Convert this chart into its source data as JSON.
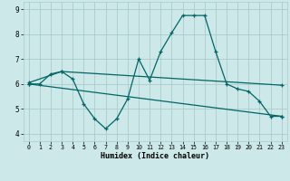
{
  "title": "",
  "xlabel": "Humidex (Indice chaleur)",
  "bg_color": "#cce8e8",
  "grid_color": "#aacccc",
  "line_color": "#006666",
  "xlim": [
    -0.5,
    23.5
  ],
  "ylim": [
    3.7,
    9.3
  ],
  "xticks": [
    0,
    1,
    2,
    3,
    4,
    5,
    6,
    7,
    8,
    9,
    10,
    11,
    12,
    13,
    14,
    15,
    16,
    17,
    18,
    19,
    20,
    21,
    22,
    23
  ],
  "yticks": [
    4,
    5,
    6,
    7,
    8,
    9
  ],
  "series1_x": [
    0,
    1,
    2,
    3,
    4,
    5,
    6,
    7,
    8,
    9,
    10,
    11,
    12,
    13,
    14,
    15,
    16,
    17,
    18,
    19,
    20,
    21,
    22,
    23
  ],
  "series1_y": [
    6.0,
    6.0,
    6.4,
    6.5,
    6.2,
    5.2,
    4.6,
    4.2,
    4.6,
    5.4,
    7.0,
    6.15,
    7.3,
    8.05,
    8.75,
    8.75,
    8.75,
    7.3,
    6.0,
    5.8,
    5.7,
    5.3,
    4.7,
    4.7
  ],
  "series2_x": [
    0,
    23
  ],
  "series2_y": [
    6.0,
    4.7
  ],
  "series3_x": [
    0,
    3,
    23
  ],
  "series3_y": [
    6.05,
    6.5,
    5.95
  ],
  "marker": "+",
  "markersize": 3.5,
  "linewidth": 0.9
}
